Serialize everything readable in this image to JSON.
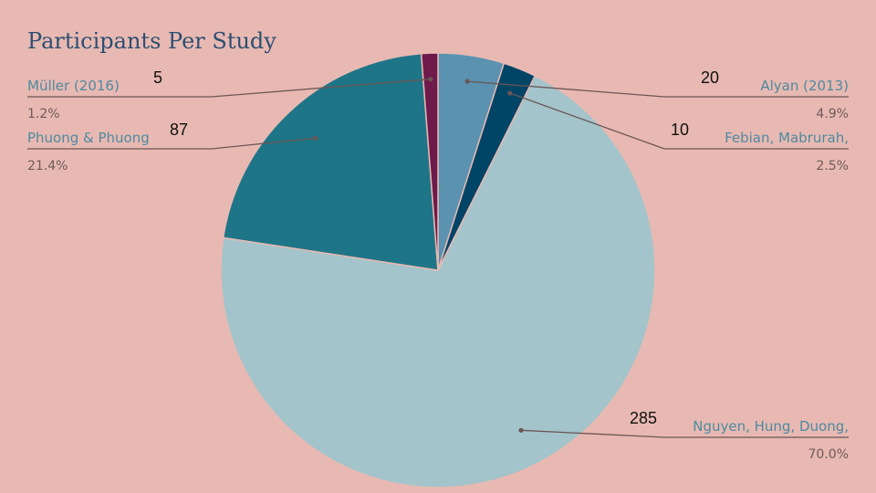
{
  "chart_data": {
    "type": "pie",
    "title": "Participants Per Study",
    "slices": [
      {
        "label": "Alyan (2013)",
        "value": 20,
        "value_label": "20",
        "percent": "4.9%",
        "color": "#5a92b0"
      },
      {
        "label": "Febian, Mabrurah,",
        "value": 10,
        "value_label": "10",
        "percent": "2.5%",
        "color": "#004466"
      },
      {
        "label": "Nguyen, Hung, Duong,",
        "value": 285,
        "value_label": "285",
        "percent": "70.0%",
        "color": "#a3c4ca"
      },
      {
        "label": "Phuong & Phuong",
        "value": 87,
        "value_label": "87",
        "percent": "21.4%",
        "color": "#1e7587"
      },
      {
        "label": "Müller (2016)",
        "value": 5,
        "value_label": "5",
        "percent": "1.2%",
        "color": "#6e1a4a"
      }
    ]
  }
}
